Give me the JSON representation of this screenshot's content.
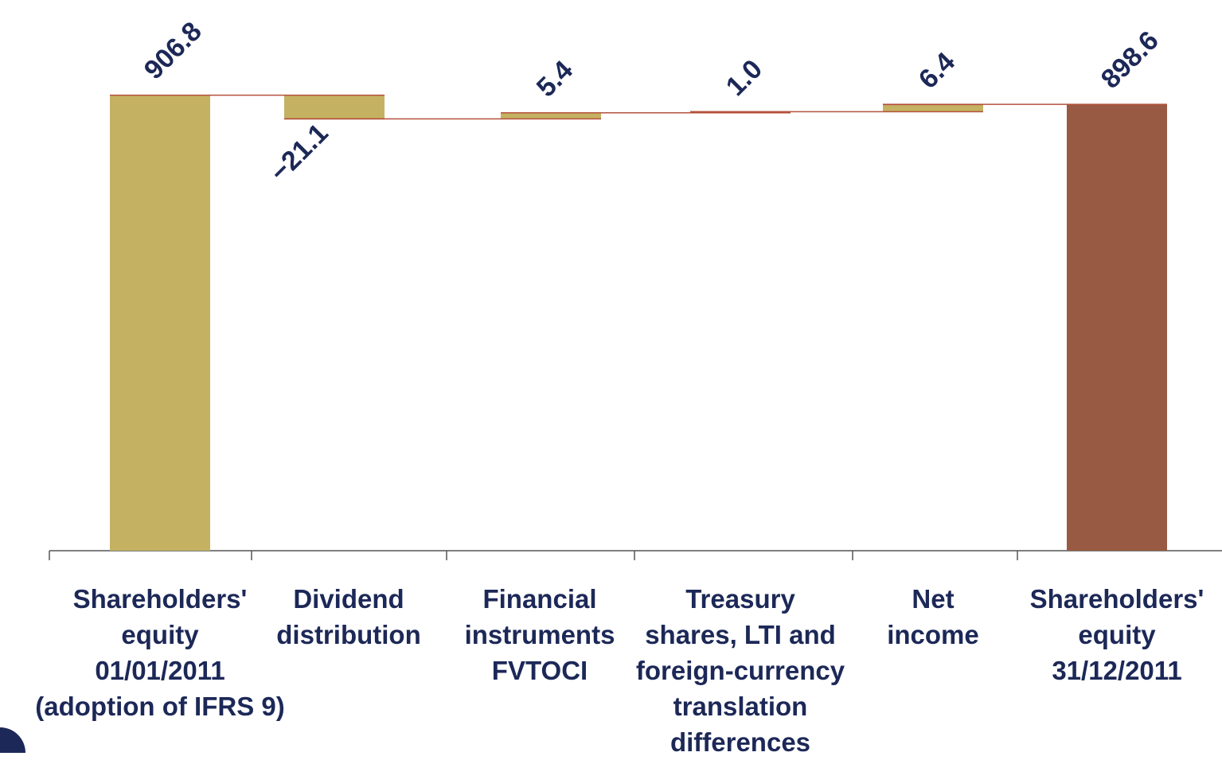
{
  "chart_data": {
    "type": "waterfall",
    "categories": [
      "Shareholders'\nequity\n01/01/2011\n(adoption of IFRS 9)",
      "Dividend\ndistribution",
      "Financial\ninstruments\nFVTOCI",
      "Treasury\nshares, LTI and\nforeign-currency\ntranslation\ndifferences",
      "Net\nincome",
      "Shareholders'\nequity\n31/12/2011"
    ],
    "values": [
      906.8,
      -21.1,
      5.4,
      1.0,
      6.4,
      898.6
    ],
    "value_labels": [
      "906.8",
      "−21.1",
      "5.4",
      "1.0",
      "6.4",
      "898.6"
    ],
    "colors": [
      "#c4b262",
      "#c4b262",
      "#c4b262",
      "#c4b262",
      "#c4b262",
      "#985a42"
    ],
    "connector_color": "#b5513d",
    "ylim": [
      500,
      930
    ]
  }
}
